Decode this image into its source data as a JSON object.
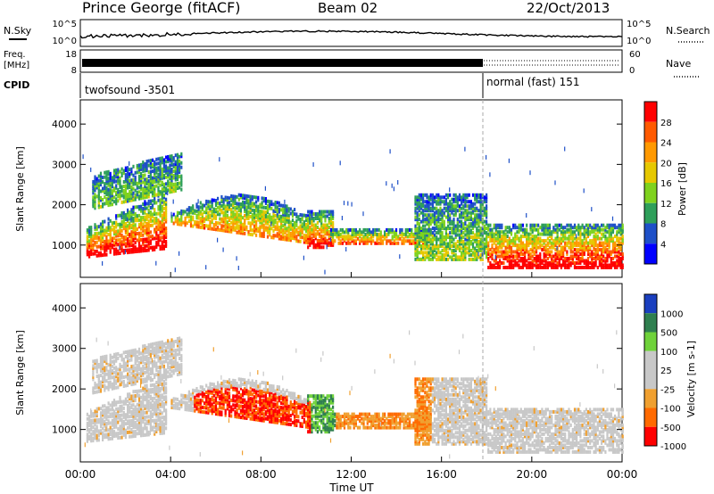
{
  "header": {
    "station": "Prince George (fitACF)",
    "beam": "Beam 02",
    "date": "22/Oct/2013"
  },
  "panels": {
    "nsky": {
      "label": "N.Sky",
      "tick_top": "10^5",
      "tick_bottom": "10^0",
      "right_label": "N.Search",
      "right_tick_top": "10^5",
      "right_tick_bottom": "10^0"
    },
    "freq": {
      "label_line1": "Freq.",
      "label_line2": "[MHz]",
      "tick_top": "18",
      "tick_bottom": "8",
      "right_label": "Nave",
      "right_tick_top": "60",
      "right_tick_bottom": "0"
    },
    "cpid": {
      "label": "CPID",
      "mode1": "twofsound -3501",
      "mode2": "normal (fast) 151"
    }
  },
  "chart_data": [
    {
      "type": "heatmap",
      "name": "power",
      "ylabel": "Slant Range [km]",
      "xlabel": "Time UT",
      "yticks": [
        "1000",
        "2000",
        "3000",
        "4000"
      ],
      "xticks": [
        "00:00",
        "04:00",
        "08:00",
        "12:00",
        "16:00",
        "20:00",
        "00:00"
      ],
      "ylim": [
        200,
        4600
      ],
      "xlim_hours": [
        0,
        24
      ],
      "colorbar": {
        "label": "Power [dB]",
        "ticks": [
          "28",
          "24",
          "20",
          "16",
          "12",
          "8",
          "4"
        ],
        "colors": [
          "#ff0000",
          "#ff5a00",
          "#ff9900",
          "#e6c800",
          "#7fd21e",
          "#2e9f5a",
          "#1e50c8",
          "#0000ff"
        ]
      }
    },
    {
      "type": "heatmap",
      "name": "velocity",
      "ylabel": "Slant Range [km]",
      "xlabel": "Time UT",
      "yticks": [
        "1000",
        "2000",
        "3000",
        "4000"
      ],
      "xticks": [
        "00:00",
        "04:00",
        "08:00",
        "12:00",
        "16:00",
        "20:00",
        "00:00"
      ],
      "ylim": [
        200,
        4600
      ],
      "xlim_hours": [
        0,
        24
      ],
      "colorbar": {
        "label": "Velocity [m s-1]",
        "ticks": [
          "1000",
          "500",
          "100",
          "25",
          "-25",
          "-100",
          "-500",
          "-1000"
        ],
        "colors": [
          "#1a3fbf",
          "#2f7f4f",
          "#6fd23a",
          "#c8c8c8",
          "#c8c8c8",
          "#f0a030",
          "#ff6a00",
          "#ff0000"
        ]
      }
    }
  ],
  "footer": {
    "xlabel": "Time UT"
  }
}
